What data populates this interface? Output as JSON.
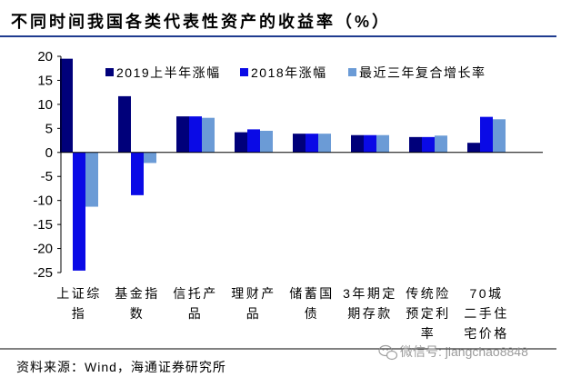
{
  "source": "资料来源：Wind，海通证券研究所",
  "watermark": "微信号: jiangchao8848",
  "colors": {
    "rule": "#1f3b8f",
    "axis": "#000000"
  },
  "chart_data": {
    "type": "bar",
    "title": "不同时间我国各类代表性资产的收益率（%）",
    "xlabel": "",
    "ylabel": "",
    "ylim": [
      -25,
      20
    ],
    "yticks": [
      20,
      15,
      10,
      5,
      0,
      -5,
      -10,
      -15,
      -20,
      -25
    ],
    "grid": false,
    "legend": "top",
    "categories": [
      "上证综指",
      "基金指数",
      "信托产品",
      "理财产品",
      "储蓄国债",
      "3年期定期存款",
      "传统险预定利率",
      "70城二手住宅价格"
    ],
    "series": [
      {
        "name": "2019上半年涨幅",
        "color": "#00007a",
        "values": [
          19.5,
          11.7,
          7.5,
          4.2,
          3.9,
          3.6,
          3.2,
          2.0
        ]
      },
      {
        "name": "2018年涨幅",
        "color": "#0a0ae6",
        "values": [
          -24.6,
          -8.9,
          7.5,
          4.8,
          3.9,
          3.6,
          3.2,
          7.4
        ]
      },
      {
        "name": "最近三年复合增长率",
        "color": "#6b9bd6",
        "values": [
          -11.3,
          -2.2,
          7.2,
          4.5,
          3.9,
          3.6,
          3.5,
          6.9
        ]
      }
    ]
  }
}
